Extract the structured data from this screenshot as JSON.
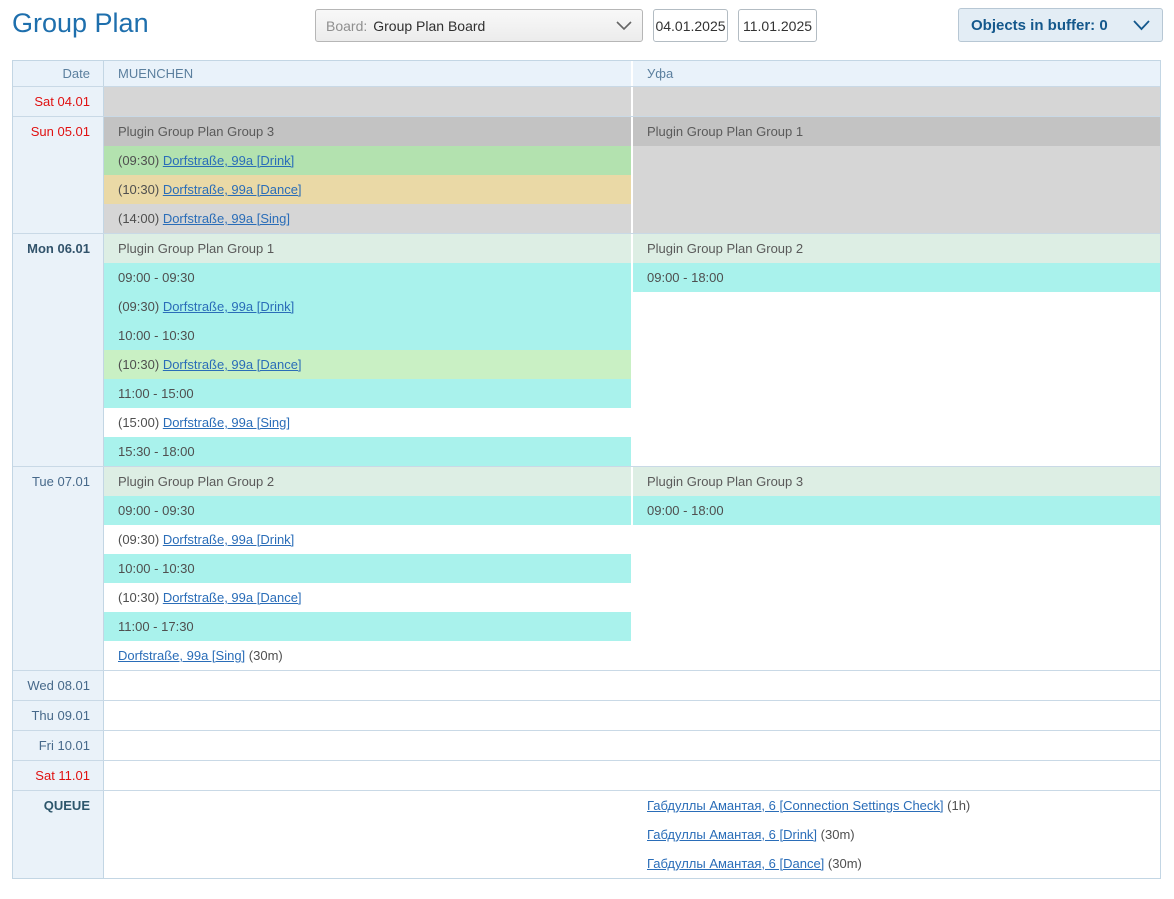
{
  "header": {
    "title": "Group Plan",
    "board_label": "Board:",
    "board_value": "Group Plan Board",
    "date_from": "04.01.2025",
    "date_to": "11.01.2025",
    "buffer_text": "Objects in buffer: 0"
  },
  "colors": {
    "accent_blue": "#1e6fad",
    "link": "#2a6db8",
    "weekend_red": "#e01111",
    "bands": {
      "grey": "#d6d6d6",
      "greyDark": "#c3c3c3",
      "green": "#b3e2af",
      "greenLight": "#c9f0c4",
      "tan": "#ead9a6",
      "mint": "#ddeee4",
      "cyan": "#a9f2ec",
      "white": "#ffffff"
    }
  },
  "table": {
    "columns": [
      "Date",
      "MUENCHEN",
      "Уфа"
    ],
    "rows": [
      {
        "date": "Sat 04.01",
        "style": "weekend",
        "muenchen": [
          {
            "color": "grey",
            "span": 1
          }
        ],
        "ufa": [
          {
            "color": "grey",
            "span": 1
          }
        ]
      },
      {
        "date": "Sun 05.01",
        "style": "weekend",
        "muenchen": [
          {
            "color": "greyDark",
            "header": "Plugin Group Plan Group 3"
          },
          {
            "color": "green",
            "prefix": "(09:30) ",
            "link": "Dorfstraße, 99a [Drink]"
          },
          {
            "color": "tan",
            "prefix": "(10:30) ",
            "link": "Dorfstraße, 99a [Dance]"
          },
          {
            "color": "grey",
            "prefix": "(14:00) ",
            "link": "Dorfstraße, 99a [Sing]"
          }
        ],
        "ufa": [
          {
            "color": "greyDark",
            "header": "Plugin Group Plan Group 1"
          },
          {
            "color": "grey",
            "span": 3
          }
        ]
      },
      {
        "date": "Mon 06.01",
        "style": "today",
        "muenchen": [
          {
            "color": "mint",
            "header": "Plugin Group Plan Group 1"
          },
          {
            "color": "cyan",
            "text": "09:00 - 09:30"
          },
          {
            "color": "cyan",
            "prefix": "(09:30) ",
            "link": "Dorfstraße, 99a [Drink]"
          },
          {
            "color": "cyan",
            "text": "10:00 - 10:30"
          },
          {
            "color": "greenLight",
            "prefix": "(10:30) ",
            "link": "Dorfstraße, 99a [Dance]"
          },
          {
            "color": "cyan",
            "text": "11:00 - 15:00"
          },
          {
            "color": "white",
            "prefix": "(15:00) ",
            "link": "Dorfstraße, 99a [Sing]"
          },
          {
            "color": "cyan",
            "text": "15:30 - 18:00"
          }
        ],
        "ufa": [
          {
            "color": "mint",
            "header": "Plugin Group Plan Group 2"
          },
          {
            "color": "cyan",
            "text": "09:00 - 18:00"
          },
          {
            "color": "white",
            "span": 6
          }
        ]
      },
      {
        "date": "Tue 07.01",
        "style": "normal",
        "muenchen": [
          {
            "color": "mint",
            "header": "Plugin Group Plan Group 2"
          },
          {
            "color": "cyan",
            "text": "09:00 - 09:30"
          },
          {
            "color": "white",
            "prefix": "(09:30) ",
            "link": "Dorfstraße, 99a [Drink]"
          },
          {
            "color": "cyan",
            "text": "10:00 - 10:30"
          },
          {
            "color": "white",
            "prefix": "(10:30) ",
            "link": "Dorfstraße, 99a [Dance]"
          },
          {
            "color": "cyan",
            "text": "11:00 - 17:30"
          },
          {
            "color": "white",
            "link": "Dorfstraße, 99a [Sing]",
            "suffix": " (30m)"
          }
        ],
        "ufa": [
          {
            "color": "mint",
            "header": "Plugin Group Plan Group 3"
          },
          {
            "color": "cyan",
            "text": "09:00 - 18:00"
          },
          {
            "color": "white",
            "span": 5
          }
        ]
      },
      {
        "date": "Wed 08.01",
        "style": "normal",
        "muenchen": [
          {
            "color": "white",
            "span": 1
          }
        ],
        "ufa": [
          {
            "color": "white",
            "span": 1
          }
        ]
      },
      {
        "date": "Thu 09.01",
        "style": "normal",
        "muenchen": [
          {
            "color": "white",
            "span": 1
          }
        ],
        "ufa": [
          {
            "color": "white",
            "span": 1
          }
        ]
      },
      {
        "date": "Fri 10.01",
        "style": "normal",
        "muenchen": [
          {
            "color": "white",
            "span": 1
          }
        ],
        "ufa": [
          {
            "color": "white",
            "span": 1
          }
        ]
      },
      {
        "date": "Sat 11.01",
        "style": "weekend",
        "muenchen": [
          {
            "color": "white",
            "span": 1
          }
        ],
        "ufa": [
          {
            "color": "white",
            "span": 1
          }
        ]
      },
      {
        "date": "QUEUE",
        "style": "queue",
        "muenchen": [
          {
            "color": "white",
            "span": 3
          }
        ],
        "ufa": [
          {
            "color": "white",
            "link": "Габдуллы Амантая, 6 [Connection Settings Check]",
            "suffix": " (1h)"
          },
          {
            "color": "white",
            "link": "Габдуллы Амантая, 6 [Drink]",
            "suffix": " (30m)"
          },
          {
            "color": "white",
            "link": "Габдуллы Амантая, 6 [Dance]",
            "suffix": " (30m)"
          }
        ]
      }
    ]
  }
}
